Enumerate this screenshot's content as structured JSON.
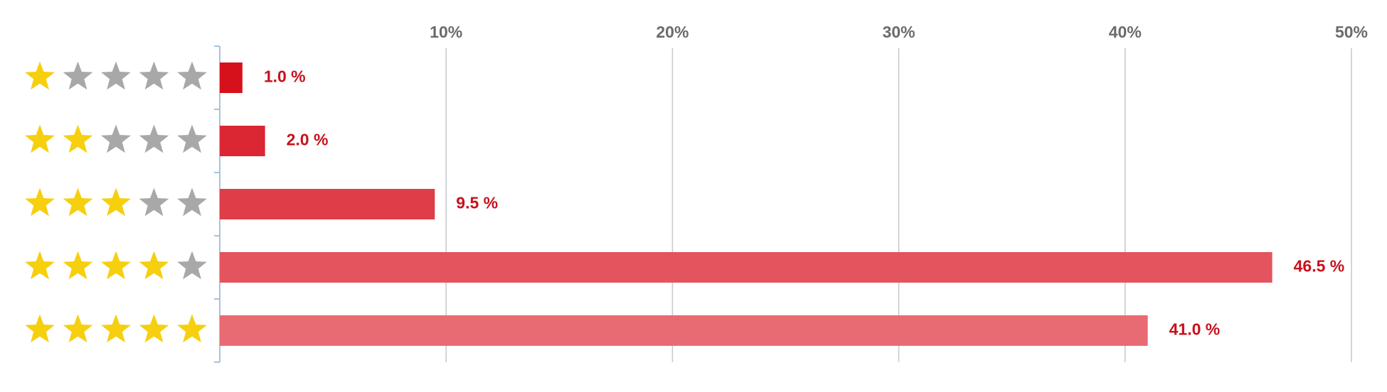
{
  "chart_data": {
    "type": "bar",
    "orientation": "horizontal",
    "categories": [
      null,
      null,
      null,
      null,
      null
    ],
    "values": [
      1.0,
      2.0,
      9.5,
      46.5,
      41.0
    ],
    "value_labels": [
      "1.0 %",
      "2.0 %",
      "9.5 %",
      "46.5 %",
      "41.0 %"
    ],
    "colors": [
      "#d7111b",
      "#db2633",
      "#df3d48",
      "#e4545e",
      "#e86b74"
    ],
    "label_color": "#c8101a",
    "xlim": [
      0,
      50
    ],
    "xticks": [
      {
        "value": 10,
        "label": "10%"
      },
      {
        "value": 20,
        "label": "20%"
      },
      {
        "value": 30,
        "label": "30%"
      },
      {
        "value": 40,
        "label": "40%"
      },
      {
        "value": 50,
        "label": "50%"
      }
    ],
    "grid": true
  }
}
